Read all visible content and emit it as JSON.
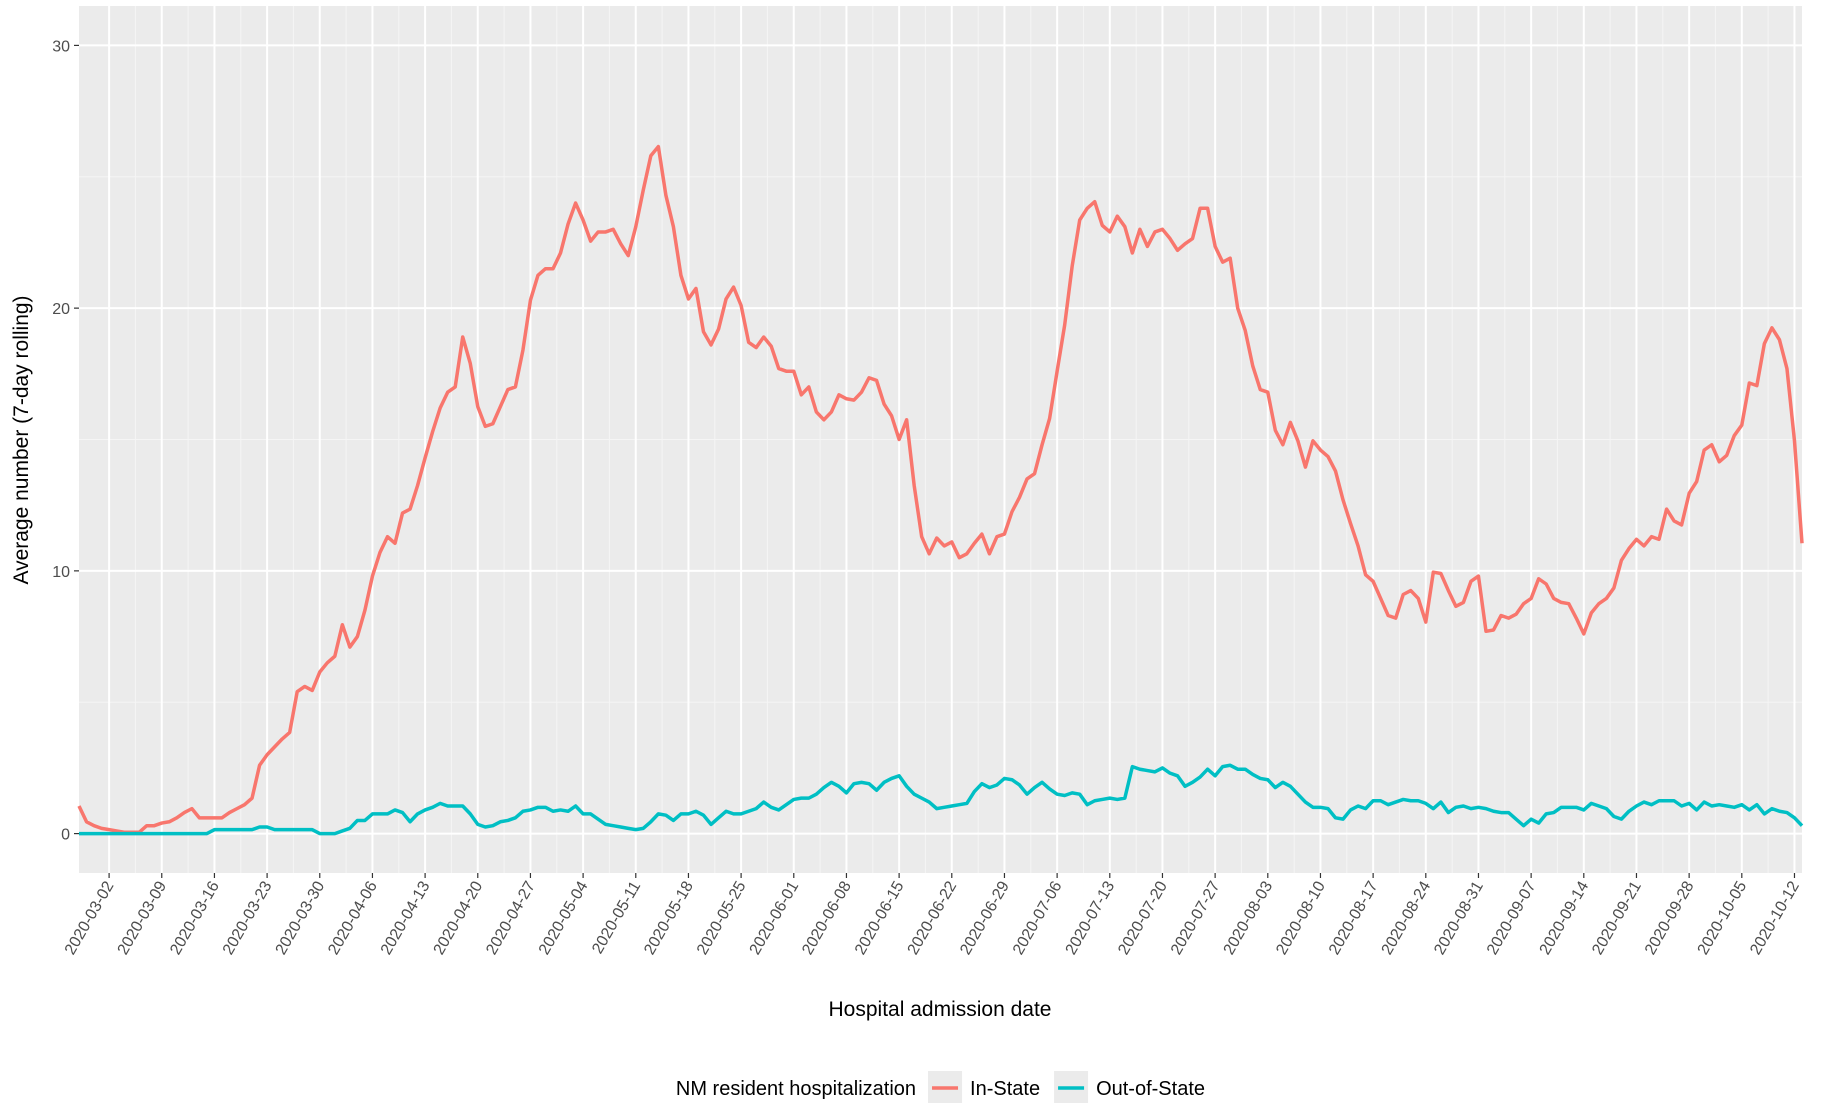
{
  "chart_data": {
    "type": "line",
    "x_label": "Hospital admission date",
    "y_label": "Average number (7-day rolling)",
    "legend_title": "NM resident hospitalization",
    "legend_position": "bottom",
    "grid": true,
    "xlim": [
      "2020-02-27",
      "2020-10-13"
    ],
    "ylim": [
      -1.5,
      31.5
    ],
    "yticks": [
      0,
      10,
      20,
      30
    ],
    "xticks": [
      "2020-03-02",
      "2020-03-09",
      "2020-03-16",
      "2020-03-23",
      "2020-03-30",
      "2020-04-06",
      "2020-04-13",
      "2020-04-20",
      "2020-04-27",
      "2020-05-04",
      "2020-05-11",
      "2020-05-18",
      "2020-05-25",
      "2020-06-01",
      "2020-06-08",
      "2020-06-15",
      "2020-06-22",
      "2020-06-29",
      "2020-07-06",
      "2020-07-13",
      "2020-07-20",
      "2020-07-27",
      "2020-08-03",
      "2020-08-10",
      "2020-08-17",
      "2020-08-24",
      "2020-08-31",
      "2020-09-07",
      "2020-09-14",
      "2020-09-21",
      "2020-09-28",
      "2020-10-05",
      "2020-10-12"
    ],
    "x": [
      "2020-02-27",
      "2020-02-28",
      "2020-02-29",
      "2020-03-01",
      "2020-03-02",
      "2020-03-03",
      "2020-03-04",
      "2020-03-05",
      "2020-03-06",
      "2020-03-07",
      "2020-03-08",
      "2020-03-09",
      "2020-03-10",
      "2020-03-11",
      "2020-03-12",
      "2020-03-13",
      "2020-03-14",
      "2020-03-15",
      "2020-03-16",
      "2020-03-17",
      "2020-03-18",
      "2020-03-19",
      "2020-03-20",
      "2020-03-21",
      "2020-03-22",
      "2020-03-23",
      "2020-03-24",
      "2020-03-25",
      "2020-03-26",
      "2020-03-27",
      "2020-03-28",
      "2020-03-29",
      "2020-03-30",
      "2020-03-31",
      "2020-04-01",
      "2020-04-02",
      "2020-04-03",
      "2020-04-04",
      "2020-04-05",
      "2020-04-06",
      "2020-04-07",
      "2020-04-08",
      "2020-04-09",
      "2020-04-10",
      "2020-04-11",
      "2020-04-12",
      "2020-04-13",
      "2020-04-14",
      "2020-04-15",
      "2020-04-16",
      "2020-04-17",
      "2020-04-18",
      "2020-04-19",
      "2020-04-20",
      "2020-04-21",
      "2020-04-22",
      "2020-04-23",
      "2020-04-24",
      "2020-04-25",
      "2020-04-26",
      "2020-04-27",
      "2020-04-28",
      "2020-04-29",
      "2020-04-30",
      "2020-05-01",
      "2020-05-02",
      "2020-05-03",
      "2020-05-04",
      "2020-05-05",
      "2020-05-06",
      "2020-05-07",
      "2020-05-08",
      "2020-05-09",
      "2020-05-10",
      "2020-05-11",
      "2020-05-12",
      "2020-05-13",
      "2020-05-14",
      "2020-05-15",
      "2020-05-16",
      "2020-05-17",
      "2020-05-18",
      "2020-05-19",
      "2020-05-20",
      "2020-05-21",
      "2020-05-22",
      "2020-05-23",
      "2020-05-24",
      "2020-05-25",
      "2020-05-26",
      "2020-05-27",
      "2020-05-28",
      "2020-05-29",
      "2020-05-30",
      "2020-05-31",
      "2020-06-01",
      "2020-06-02",
      "2020-06-03",
      "2020-06-04",
      "2020-06-05",
      "2020-06-06",
      "2020-06-07",
      "2020-06-08",
      "2020-06-09",
      "2020-06-10",
      "2020-06-11",
      "2020-06-12",
      "2020-06-13",
      "2020-06-14",
      "2020-06-15",
      "2020-06-16",
      "2020-06-17",
      "2020-06-18",
      "2020-06-19",
      "2020-06-20",
      "2020-06-21",
      "2020-06-22",
      "2020-06-23",
      "2020-06-24",
      "2020-06-25",
      "2020-06-26",
      "2020-06-27",
      "2020-06-28",
      "2020-06-29",
      "2020-06-30",
      "2020-07-01",
      "2020-07-02",
      "2020-07-03",
      "2020-07-04",
      "2020-07-05",
      "2020-07-06",
      "2020-07-07",
      "2020-07-08",
      "2020-07-09",
      "2020-07-10",
      "2020-07-11",
      "2020-07-12",
      "2020-07-13",
      "2020-07-14",
      "2020-07-15",
      "2020-07-16",
      "2020-07-17",
      "2020-07-18",
      "2020-07-19",
      "2020-07-20",
      "2020-07-21",
      "2020-07-22",
      "2020-07-23",
      "2020-07-24",
      "2020-07-25",
      "2020-07-26",
      "2020-07-27",
      "2020-07-28",
      "2020-07-29",
      "2020-07-30",
      "2020-07-31",
      "2020-08-01",
      "2020-08-02",
      "2020-08-03",
      "2020-08-04",
      "2020-08-05",
      "2020-08-06",
      "2020-08-07",
      "2020-08-08",
      "2020-08-09",
      "2020-08-10",
      "2020-08-11",
      "2020-08-12",
      "2020-08-13",
      "2020-08-14",
      "2020-08-15",
      "2020-08-16",
      "2020-08-17",
      "2020-08-18",
      "2020-08-19",
      "2020-08-20",
      "2020-08-21",
      "2020-08-22",
      "2020-08-23",
      "2020-08-24",
      "2020-08-25",
      "2020-08-26",
      "2020-08-27",
      "2020-08-28",
      "2020-08-29",
      "2020-08-30",
      "2020-08-31",
      "2020-09-01",
      "2020-09-02",
      "2020-09-03",
      "2020-09-04",
      "2020-09-05",
      "2020-09-06",
      "2020-09-07",
      "2020-09-08",
      "2020-09-09",
      "2020-09-10",
      "2020-09-11",
      "2020-09-12",
      "2020-09-13",
      "2020-09-14",
      "2020-09-15",
      "2020-09-16",
      "2020-09-17",
      "2020-09-18",
      "2020-09-19",
      "2020-09-20",
      "2020-09-21",
      "2020-09-22",
      "2020-09-23",
      "2020-09-24",
      "2020-09-25",
      "2020-09-26",
      "2020-09-27",
      "2020-09-28",
      "2020-09-29",
      "2020-09-30",
      "2020-10-01",
      "2020-10-02",
      "2020-10-03",
      "2020-10-04",
      "2020-10-05",
      "2020-10-06",
      "2020-10-07",
      "2020-10-08",
      "2020-10-09",
      "2020-10-10",
      "2020-10-11",
      "2020-10-12",
      "2020-10-13"
    ],
    "series": [
      {
        "name": "In-State",
        "color": "#F8766D",
        "values": [
          1.05,
          0.45,
          0.3,
          0.2,
          0.15,
          0.1,
          0.05,
          0.05,
          0.05,
          0.3,
          0.3,
          0.4,
          0.45,
          0.6,
          0.8,
          0.95,
          0.6,
          0.6,
          0.6,
          0.6,
          0.8,
          0.95,
          1.1,
          1.35,
          2.6,
          3.0,
          3.3,
          3.6,
          3.85,
          5.4,
          5.6,
          5.45,
          6.15,
          6.5,
          6.75,
          7.95,
          7.1,
          7.5,
          8.5,
          9.8,
          10.7,
          11.3,
          11.05,
          12.2,
          12.35,
          13.25,
          14.3,
          15.3,
          16.2,
          16.8,
          17.0,
          18.9,
          17.9,
          16.25,
          15.5,
          15.6,
          16.25,
          16.9,
          17.0,
          18.4,
          20.3,
          21.25,
          21.5,
          21.5,
          22.1,
          23.2,
          24.0,
          23.35,
          22.55,
          22.9,
          22.9,
          23.0,
          22.45,
          22.0,
          23.1,
          24.5,
          25.8,
          26.15,
          24.3,
          23.1,
          21.25,
          20.35,
          20.75,
          19.1,
          18.6,
          19.2,
          20.35,
          20.8,
          20.1,
          18.7,
          18.5,
          18.9,
          18.55,
          17.7,
          17.6,
          17.6,
          16.7,
          17.0,
          16.05,
          15.75,
          16.05,
          16.7,
          16.55,
          16.5,
          16.8,
          17.35,
          17.25,
          16.35,
          15.9,
          15.0,
          15.75,
          13.25,
          11.3,
          10.65,
          11.25,
          10.95,
          11.1,
          10.5,
          10.65,
          11.05,
          11.4,
          10.65,
          11.3,
          11.4,
          12.25,
          12.8,
          13.5,
          13.7,
          14.8,
          15.8,
          17.6,
          19.35,
          21.6,
          23.35,
          23.8,
          24.05,
          23.15,
          22.9,
          23.5,
          23.1,
          22.1,
          23.0,
          22.35,
          22.9,
          23.0,
          22.65,
          22.2,
          22.45,
          22.65,
          23.8,
          23.8,
          22.35,
          21.75,
          21.9,
          20.0,
          19.15,
          17.8,
          16.9,
          16.8,
          15.35,
          14.8,
          15.65,
          14.95,
          13.95,
          14.95,
          14.6,
          14.35,
          13.8,
          12.7,
          11.8,
          10.95,
          9.85,
          9.6,
          8.95,
          8.3,
          8.2,
          9.1,
          9.25,
          8.95,
          8.05,
          9.95,
          9.9,
          9.25,
          8.65,
          8.8,
          9.6,
          9.8,
          7.7,
          7.75,
          8.3,
          8.2,
          8.35,
          8.75,
          8.95,
          9.7,
          9.5,
          8.95,
          8.8,
          8.75,
          8.2,
          7.6,
          8.4,
          8.75,
          8.95,
          9.35,
          10.4,
          10.85,
          11.2,
          10.95,
          11.3,
          11.2,
          12.35,
          11.9,
          11.75,
          12.95,
          13.4,
          14.6,
          14.8,
          14.15,
          14.4,
          15.15,
          15.55,
          17.15,
          17.05,
          18.65,
          19.25,
          18.8,
          17.7,
          14.95,
          11.05
        ]
      },
      {
        "name": "Out-of-State",
        "color": "#00BFC4",
        "values": [
          0,
          0,
          0,
          0,
          0,
          0,
          0,
          0,
          0,
          0,
          0,
          0,
          0,
          0,
          0,
          0,
          0,
          0,
          0.15,
          0.15,
          0.15,
          0.15,
          0.15,
          0.15,
          0.25,
          0.25,
          0.15,
          0.15,
          0.15,
          0.15,
          0.15,
          0.15,
          0,
          0,
          0,
          0.1,
          0.2,
          0.5,
          0.5,
          0.75,
          0.75,
          0.75,
          0.9,
          0.8,
          0.45,
          0.75,
          0.9,
          1.0,
          1.15,
          1.05,
          1.05,
          1.05,
          0.75,
          0.35,
          0.25,
          0.3,
          0.45,
          0.5,
          0.6,
          0.85,
          0.9,
          1.0,
          1.0,
          0.85,
          0.9,
          0.85,
          1.05,
          0.75,
          0.75,
          0.55,
          0.35,
          0.3,
          0.25,
          0.2,
          0.15,
          0.2,
          0.45,
          0.75,
          0.7,
          0.5,
          0.75,
          0.75,
          0.85,
          0.7,
          0.35,
          0.6,
          0.85,
          0.75,
          0.75,
          0.85,
          0.95,
          1.2,
          1.0,
          0.9,
          1.1,
          1.3,
          1.35,
          1.35,
          1.5,
          1.75,
          1.95,
          1.8,
          1.55,
          1.9,
          1.95,
          1.9,
          1.65,
          1.95,
          2.1,
          2.2,
          1.8,
          1.5,
          1.35,
          1.2,
          0.95,
          1.0,
          1.05,
          1.1,
          1.15,
          1.6,
          1.9,
          1.75,
          1.85,
          2.1,
          2.05,
          1.85,
          1.5,
          1.75,
          1.95,
          1.7,
          1.5,
          1.45,
          1.55,
          1.5,
          1.1,
          1.25,
          1.3,
          1.35,
          1.3,
          1.35,
          2.55,
          2.45,
          2.4,
          2.35,
          2.5,
          2.3,
          2.2,
          1.8,
          1.95,
          2.15,
          2.45,
          2.2,
          2.55,
          2.6,
          2.45,
          2.45,
          2.25,
          2.1,
          2.05,
          1.75,
          1.95,
          1.8,
          1.5,
          1.2,
          1.0,
          1.0,
          0.95,
          0.6,
          0.55,
          0.9,
          1.05,
          0.95,
          1.25,
          1.25,
          1.1,
          1.2,
          1.3,
          1.25,
          1.25,
          1.15,
          0.95,
          1.2,
          0.8,
          1.0,
          1.05,
          0.95,
          1.0,
          0.95,
          0.85,
          0.8,
          0.8,
          0.55,
          0.3,
          0.55,
          0.4,
          0.75,
          0.8,
          1.0,
          1.0,
          1.0,
          0.9,
          1.15,
          1.05,
          0.95,
          0.65,
          0.55,
          0.85,
          1.05,
          1.2,
          1.1,
          1.25,
          1.25,
          1.25,
          1.05,
          1.15,
          0.9,
          1.2,
          1.05,
          1.1,
          1.05,
          1.0,
          1.1,
          0.9,
          1.1,
          0.75,
          0.95,
          0.85,
          0.8,
          0.6,
          0.3
        ]
      }
    ]
  }
}
